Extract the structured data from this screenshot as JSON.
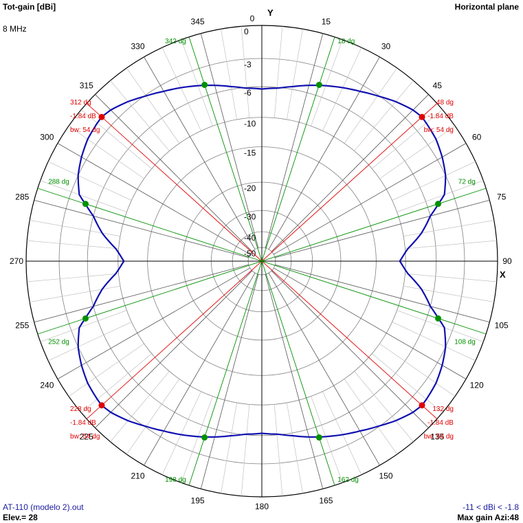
{
  "header": {
    "title": "Tot-gain [dBi]",
    "frequency": "8 MHz",
    "plane": "Horizontal plane"
  },
  "footer": {
    "file": "AT-110 (modelo 2).out",
    "elevation": "Elev.= 28",
    "range": "-11 < dBi < -1.8",
    "max_gain": "Max gain Azi:48"
  },
  "axes": {
    "y_label": "Y",
    "x_label": "X"
  },
  "colors": {
    "pattern": "#1010b0",
    "red_markers": "#e00000",
    "green_markers": "#009000",
    "grid": "#808080",
    "axis": "#000000"
  },
  "chart_data": {
    "type": "polar",
    "title": "Tot-gain [dBi]",
    "subtitle": "Horizontal plane",
    "angle_ticks": [
      0,
      15,
      30,
      45,
      60,
      75,
      90,
      105,
      120,
      135,
      150,
      165,
      180,
      195,
      210,
      225,
      240,
      255,
      270,
      285,
      300,
      315,
      330,
      345
    ],
    "radial_tick_labels": [
      "0",
      "-3",
      "-6",
      "-10",
      "-15",
      "-20",
      "-30",
      "-40",
      "-50"
    ],
    "radial_tick_values": [
      0,
      -3,
      -6,
      -10,
      -15,
      -20,
      -30,
      -40,
      -50
    ],
    "max_gain_dbi": -1.84,
    "min_gain_dbi": -11,
    "pattern": {
      "azimuth_deg": [
        0,
        5,
        10,
        15,
        18,
        25,
        30,
        35,
        40,
        45,
        48,
        55,
        60,
        65,
        70,
        72,
        75,
        80,
        85,
        90,
        95,
        100,
        105,
        108,
        110,
        115,
        120,
        125,
        130,
        132,
        135,
        140,
        145,
        150,
        155,
        160,
        162,
        165,
        170,
        175,
        180,
        185,
        190,
        195,
        198,
        200,
        205,
        210,
        215,
        220,
        225,
        228,
        230,
        235,
        240,
        245,
        250,
        252,
        255,
        260,
        265,
        270,
        275,
        280,
        285,
        288,
        290,
        295,
        300,
        305,
        310,
        312,
        315,
        320,
        325,
        330,
        335,
        340,
        342,
        345,
        350,
        355
      ],
      "gain_dbi": [
        -6.3,
        -6.1,
        -5.7,
        -5.2,
        -4.9,
        -4.2,
        -3.7,
        -3.1,
        -2.5,
        -2.0,
        -1.84,
        -2.1,
        -2.5,
        -3.0,
        -3.9,
        -4.8,
        -6.0,
        -7.6,
        -9.6,
        -11.0,
        -9.6,
        -7.6,
        -6.0,
        -4.8,
        -3.9,
        -3.0,
        -2.5,
        -2.1,
        -1.9,
        -1.84,
        -2.0,
        -2.5,
        -3.1,
        -3.7,
        -4.2,
        -4.7,
        -4.9,
        -5.2,
        -5.7,
        -6.1,
        -6.3,
        -6.1,
        -5.7,
        -5.2,
        -4.9,
        -4.7,
        -4.2,
        -3.7,
        -3.1,
        -2.5,
        -2.0,
        -1.84,
        -1.9,
        -2.1,
        -2.5,
        -3.0,
        -3.9,
        -4.8,
        -6.0,
        -7.6,
        -9.6,
        -11.0,
        -9.6,
        -7.6,
        -6.0,
        -4.8,
        -3.9,
        -3.0,
        -2.5,
        -2.1,
        -1.9,
        -1.84,
        -2.0,
        -2.5,
        -3.1,
        -3.7,
        -4.2,
        -4.7,
        -4.9,
        -5.2,
        -5.7,
        -6.1
      ]
    },
    "markers": [
      {
        "azimuth": 48,
        "type": "red",
        "labels": [
          "48 dg",
          "-1.84 dB",
          "bw: 54 dg"
        ],
        "gain_dbi": -1.84
      },
      {
        "azimuth": 132,
        "type": "red",
        "labels": [
          "132 dg",
          "-1.84 dB",
          "bw: 54 dg"
        ],
        "gain_dbi": -1.84
      },
      {
        "azimuth": 228,
        "type": "red",
        "labels": [
          "228 dg",
          "-1.84 dB",
          "bw: 54 dg"
        ],
        "gain_dbi": -1.84
      },
      {
        "azimuth": 312,
        "type": "red",
        "labels": [
          "312 dg",
          "-1.84 dB",
          "bw: 54 dg"
        ],
        "gain_dbi": -1.84
      },
      {
        "azimuth": 18,
        "type": "green",
        "labels": [
          "18 dg"
        ],
        "gain_dbi": -4.84
      },
      {
        "azimuth": 72,
        "type": "green",
        "labels": [
          "72 dg"
        ],
        "gain_dbi": -4.84
      },
      {
        "azimuth": 108,
        "type": "green",
        "labels": [
          "108 dg"
        ],
        "gain_dbi": -4.84
      },
      {
        "azimuth": 162,
        "type": "green",
        "labels": [
          "162 dg"
        ],
        "gain_dbi": -4.84
      },
      {
        "azimuth": 198,
        "type": "green",
        "labels": [
          "198 dg"
        ],
        "gain_dbi": -4.84
      },
      {
        "azimuth": 252,
        "type": "green",
        "labels": [
          "252 dg"
        ],
        "gain_dbi": -4.84
      },
      {
        "azimuth": 288,
        "type": "green",
        "labels": [
          "288 dg"
        ],
        "gain_dbi": -4.84
      },
      {
        "azimuth": 342,
        "type": "green",
        "labels": [
          "342 dg"
        ],
        "gain_dbi": -4.84
      }
    ]
  }
}
